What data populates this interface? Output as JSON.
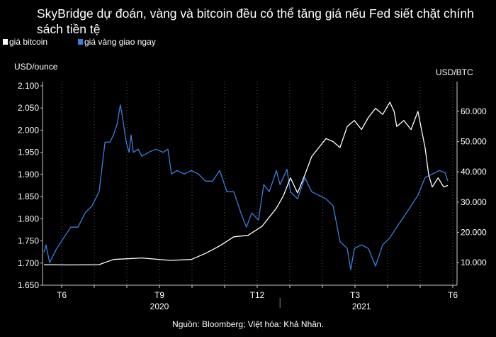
{
  "chart_data": {
    "type": "line",
    "title": "SkyBridge dự đoán, vàng và bitcoin đều có thể tăng giá nếu Fed siết chặt chính sách tiền tệ",
    "source": "Nguồn: Bloomberg; Việt hóa: Khả Nhân.",
    "ylabel_left": "USD/ounce",
    "ylabel_right": "USD/BTC",
    "ylim_left": [
      1650,
      2100
    ],
    "yticks_left": [
      "1.650",
      "1.700",
      "1.750",
      "1.800",
      "1.850",
      "1.900",
      "1.950",
      "2.000",
      "2.050",
      "2.100"
    ],
    "ylim_right": [
      0,
      67000
    ],
    "yticks_right": [
      {
        "v": 10000,
        "label": "10.000"
      },
      {
        "v": 20000,
        "label": "20.000"
      },
      {
        "v": 30000,
        "label": "30.000"
      },
      {
        "v": 40000,
        "label": "40.000"
      },
      {
        "v": 50000,
        "label": "50.000"
      },
      {
        "v": 60000,
        "label": "60.000"
      }
    ],
    "x_unit": "months since June 2020",
    "xlim": [
      -0.55,
      11.9
    ],
    "xticks": [
      {
        "m": 0,
        "label": "T6"
      },
      {
        "m": 3,
        "label": "T9"
      },
      {
        "m": 6,
        "label": "T12"
      },
      {
        "m": 9,
        "label": "T3"
      },
      {
        "m": 12,
        "label": "T6"
      }
    ],
    "years": [
      {
        "m": 3,
        "label": "2020"
      },
      {
        "m": 9.2,
        "label": "2021"
      }
    ],
    "year_divider": 6.7,
    "legend": [
      {
        "name": "giá bitcoin",
        "color": "#ffffff"
      },
      {
        "name": "giá vàng giao ngay",
        "color": "#3a7fe0"
      }
    ],
    "series": [
      {
        "name": "giá vàng giao ngay",
        "axis": "left",
        "color": "#3a7fe0",
        "points": [
          [
            -0.54,
            1725
          ],
          [
            -0.48,
            1741
          ],
          [
            -0.37,
            1701
          ],
          [
            -0.15,
            1733
          ],
          [
            0.28,
            1781
          ],
          [
            0.5,
            1781
          ],
          [
            0.72,
            1813
          ],
          [
            0.93,
            1829
          ],
          [
            1.15,
            1861
          ],
          [
            1.33,
            1973
          ],
          [
            1.48,
            1973
          ],
          [
            1.59,
            1989
          ],
          [
            1.7,
            2013
          ],
          [
            1.8,
            2057
          ],
          [
            1.85,
            2037
          ],
          [
            1.98,
            1973
          ],
          [
            2.07,
            1950
          ],
          [
            2.13,
            1989
          ],
          [
            2.2,
            1950
          ],
          [
            2.35,
            1957
          ],
          [
            2.46,
            1941
          ],
          [
            2.67,
            1950
          ],
          [
            2.89,
            1957
          ],
          [
            3.11,
            1950
          ],
          [
            3.26,
            1957
          ],
          [
            3.37,
            1901
          ],
          [
            3.54,
            1909
          ],
          [
            3.76,
            1901
          ],
          [
            3.98,
            1909
          ],
          [
            4.2,
            1901
          ],
          [
            4.41,
            1885
          ],
          [
            4.63,
            1885
          ],
          [
            4.85,
            1909
          ],
          [
            5.07,
            1861
          ],
          [
            5.28,
            1861
          ],
          [
            5.5,
            1813
          ],
          [
            5.67,
            1781
          ],
          [
            5.83,
            1813
          ],
          [
            6.04,
            1797
          ],
          [
            6.2,
            1877
          ],
          [
            6.37,
            1861
          ],
          [
            6.59,
            1909
          ],
          [
            6.7,
            1877
          ],
          [
            6.8,
            1893
          ],
          [
            6.91,
            1912
          ],
          [
            7.02,
            1861
          ],
          [
            7.24,
            1845
          ],
          [
            7.46,
            1893
          ],
          [
            7.67,
            1861
          ],
          [
            7.89,
            1853
          ],
          [
            8.11,
            1845
          ],
          [
            8.33,
            1829
          ],
          [
            8.54,
            1749
          ],
          [
            8.76,
            1733
          ],
          [
            8.87,
            1685
          ],
          [
            8.98,
            1733
          ],
          [
            9.2,
            1741
          ],
          [
            9.41,
            1733
          ],
          [
            9.63,
            1693
          ],
          [
            9.85,
            1741
          ],
          [
            10.07,
            1757
          ],
          [
            10.28,
            1781
          ],
          [
            10.5,
            1805
          ],
          [
            10.72,
            1829
          ],
          [
            10.93,
            1853
          ],
          [
            11.15,
            1893
          ],
          [
            11.37,
            1901
          ],
          [
            11.59,
            1909
          ],
          [
            11.76,
            1904
          ],
          [
            11.85,
            1885
          ]
        ]
      },
      {
        "name": "giá bitcoin",
        "axis": "right",
        "color": "#ffffff",
        "points": [
          [
            -0.54,
            9300
          ],
          [
            0.28,
            9200
          ],
          [
            1.15,
            9300
          ],
          [
            1.59,
            11000
          ],
          [
            2.46,
            11500
          ],
          [
            3.33,
            10700
          ],
          [
            3.98,
            11000
          ],
          [
            4.41,
            13000
          ],
          [
            4.85,
            15500
          ],
          [
            5.28,
            18500
          ],
          [
            5.72,
            19000
          ],
          [
            6.15,
            22000
          ],
          [
            6.59,
            28000
          ],
          [
            6.8,
            32000
          ],
          [
            7.02,
            38000
          ],
          [
            7.24,
            33000
          ],
          [
            7.46,
            39000
          ],
          [
            7.67,
            45000
          ],
          [
            7.89,
            48000
          ],
          [
            8.11,
            51000
          ],
          [
            8.33,
            50000
          ],
          [
            8.54,
            48000
          ],
          [
            8.76,
            55000
          ],
          [
            8.98,
            57000
          ],
          [
            9.2,
            54000
          ],
          [
            9.41,
            58000
          ],
          [
            9.63,
            61000
          ],
          [
            9.85,
            59000
          ],
          [
            10.07,
            63000
          ],
          [
            10.2,
            60000
          ],
          [
            10.28,
            55000
          ],
          [
            10.5,
            57000
          ],
          [
            10.72,
            54000
          ],
          [
            10.93,
            60000
          ],
          [
            11.15,
            48000
          ],
          [
            11.26,
            39000
          ],
          [
            11.37,
            35000
          ],
          [
            11.55,
            38000
          ],
          [
            11.72,
            35000
          ],
          [
            11.85,
            35500
          ]
        ]
      }
    ]
  }
}
